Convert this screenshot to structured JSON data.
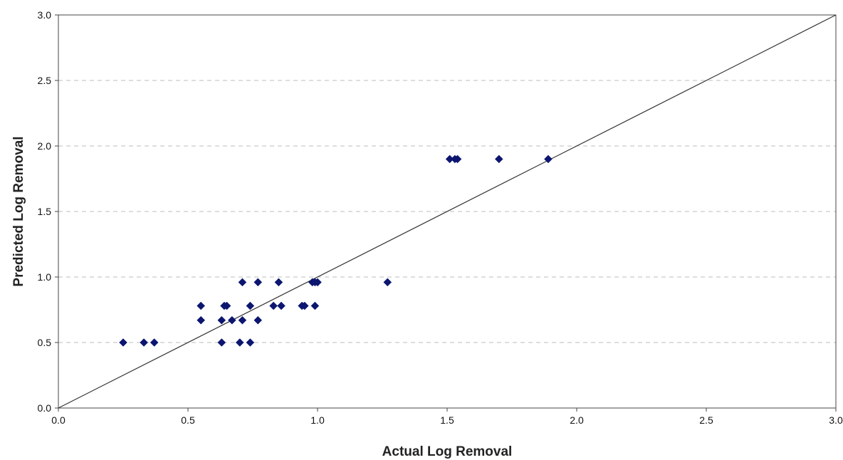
{
  "chart_data": {
    "type": "scatter",
    "xlabel": "Actual Log Removal",
    "ylabel": "Predicted Log Removal",
    "xlim": [
      0.0,
      3.0
    ],
    "ylim": [
      0.0,
      3.0
    ],
    "x_ticks": [
      "0.0",
      "0.5",
      "1.0",
      "1.5",
      "2.0",
      "2.5",
      "3.0"
    ],
    "y_ticks": [
      "0.0",
      "0.5",
      "1.0",
      "1.5",
      "2.0",
      "2.5",
      "3.0"
    ],
    "grid": "horizontal dashed",
    "reference_line": {
      "from": [
        0.0,
        0.0
      ],
      "to": [
        3.0,
        3.0
      ]
    },
    "marker": "diamond",
    "colors": {
      "marker": "#0c1670",
      "line": "#333333",
      "grid": "#bdbdbd",
      "frame": "#444444"
    },
    "series": [
      {
        "points": [
          {
            "x": 0.25,
            "y": 0.5
          },
          {
            "x": 0.33,
            "y": 0.5
          },
          {
            "x": 0.37,
            "y": 0.5
          },
          {
            "x": 0.63,
            "y": 0.5
          },
          {
            "x": 0.7,
            "y": 0.5
          },
          {
            "x": 0.74,
            "y": 0.5
          },
          {
            "x": 0.55,
            "y": 0.67
          },
          {
            "x": 0.63,
            "y": 0.67
          },
          {
            "x": 0.67,
            "y": 0.67
          },
          {
            "x": 0.71,
            "y": 0.67
          },
          {
            "x": 0.77,
            "y": 0.67
          },
          {
            "x": 0.55,
            "y": 0.78
          },
          {
            "x": 0.64,
            "y": 0.78
          },
          {
            "x": 0.65,
            "y": 0.78
          },
          {
            "x": 0.74,
            "y": 0.78
          },
          {
            "x": 0.83,
            "y": 0.78
          },
          {
            "x": 0.86,
            "y": 0.78
          },
          {
            "x": 0.94,
            "y": 0.78
          },
          {
            "x": 0.95,
            "y": 0.78
          },
          {
            "x": 0.99,
            "y": 0.78
          },
          {
            "x": 0.71,
            "y": 0.96
          },
          {
            "x": 0.77,
            "y": 0.96
          },
          {
            "x": 0.85,
            "y": 0.96
          },
          {
            "x": 0.98,
            "y": 0.96
          },
          {
            "x": 0.99,
            "y": 0.96
          },
          {
            "x": 1.0,
            "y": 0.96
          },
          {
            "x": 1.27,
            "y": 0.96
          },
          {
            "x": 1.51,
            "y": 1.9
          },
          {
            "x": 1.53,
            "y": 1.9
          },
          {
            "x": 1.54,
            "y": 1.9
          },
          {
            "x": 1.7,
            "y": 1.9
          },
          {
            "x": 1.89,
            "y": 1.9
          }
        ]
      }
    ]
  }
}
